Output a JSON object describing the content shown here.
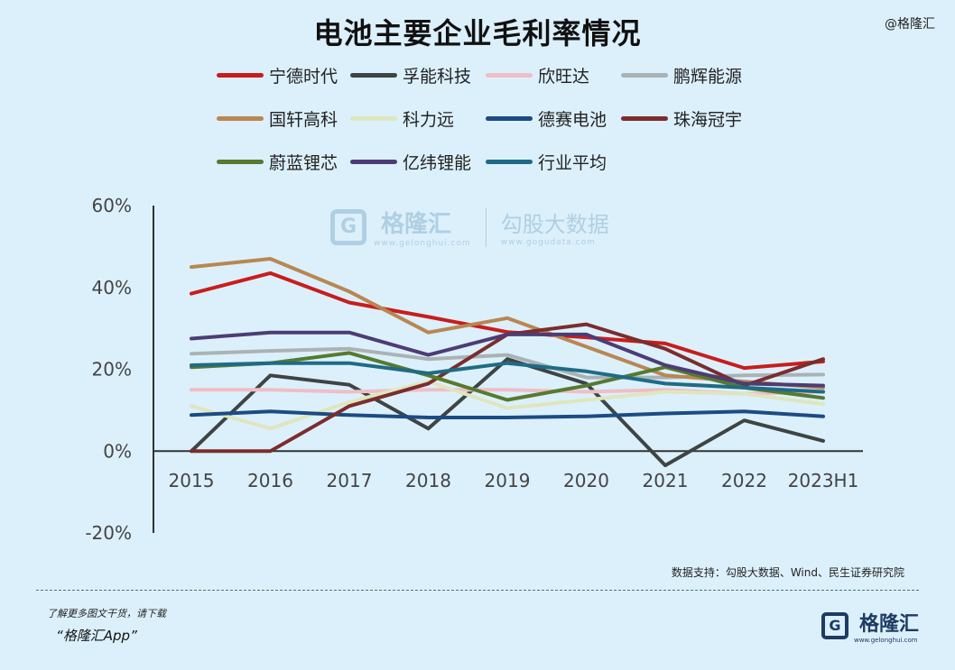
{
  "title": "电池主要企业毛利率情况",
  "top_watermark": "@格隆汇",
  "watermark": {
    "logo_letter": "G",
    "brand1": "格隆汇",
    "brand1_url": "www.gelonghui.com",
    "brand2": "勾股大数据",
    "brand2_url": "www.gogudata.com"
  },
  "source": "数据支持：勾股大数据、Wind、民生证券研究院",
  "footer": {
    "line1": "了解更多图文干货，请下载",
    "line2": "“格隆汇App”",
    "logo_letter": "G",
    "logo_text": "格隆汇",
    "logo_url": "www.gelonghui.com"
  },
  "chart_data": {
    "type": "line",
    "title": "电池主要企业毛利率情况",
    "categories": [
      "2015",
      "2016",
      "2017",
      "2018",
      "2019",
      "2020",
      "2021",
      "2022",
      "2023H1"
    ],
    "y_ticks": [
      "60%",
      "40%",
      "20%",
      "0%",
      "-20%"
    ],
    "ylim": [
      -20,
      60
    ],
    "grid": false,
    "legend_position": "top",
    "series": [
      {
        "name": "宁德时代",
        "color": "#c81d1d",
        "values": [
          38.5,
          43.5,
          36.3,
          32.8,
          29.1,
          27.8,
          26.3,
          20.3,
          21.9
        ]
      },
      {
        "name": "孚能科技",
        "color": "#3e4444",
        "values": [
          0,
          18.5,
          16.2,
          5.5,
          22.5,
          16.5,
          -3.5,
          7.5,
          2.5
        ]
      },
      {
        "name": "欣旺达",
        "color": "#efbec6",
        "values": [
          15.0,
          15.0,
          14.5,
          15.0,
          15.0,
          14.5,
          15.0,
          14.0,
          14.5
        ]
      },
      {
        "name": "鹏辉能源",
        "color": "#a9b3b5",
        "values": [
          23.8,
          24.5,
          25.0,
          22.5,
          23.5,
          18.0,
          18.0,
          18.5,
          18.7
        ]
      },
      {
        "name": "国轩高科",
        "color": "#b98652",
        "values": [
          45.0,
          47.0,
          39.0,
          29.0,
          32.5,
          25.5,
          18.5,
          17.0,
          15.5
        ]
      },
      {
        "name": "科力远",
        "color": "#dfe6bf",
        "values": [
          11.0,
          5.5,
          12.0,
          17.0,
          10.5,
          12.5,
          14.5,
          14.0,
          11.5
        ]
      },
      {
        "name": "德赛电池",
        "color": "#1c4b85",
        "values": [
          8.8,
          9.7,
          8.8,
          8.2,
          8.2,
          8.5,
          9.2,
          9.7,
          8.5
        ]
      },
      {
        "name": "珠海冠宇",
        "color": "#7b2d2d",
        "values": [
          0,
          0,
          11.0,
          16.5,
          28.5,
          31.0,
          25.0,
          16.0,
          22.5
        ]
      },
      {
        "name": "蔚蓝锂芯",
        "color": "#567a2e",
        "values": [
          20.5,
          21.5,
          24.0,
          18.5,
          12.5,
          16.0,
          20.5,
          15.5,
          13.0
        ]
      },
      {
        "name": "亿纬锂能",
        "color": "#4d3c75",
        "values": [
          27.5,
          29.0,
          29.0,
          23.5,
          28.5,
          28.5,
          21.0,
          16.5,
          16.0
        ]
      },
      {
        "name": "行业平均",
        "color": "#1f6b86",
        "values": [
          21.0,
          21.5,
          21.5,
          19.0,
          21.5,
          19.5,
          16.5,
          15.5,
          14.5
        ]
      }
    ]
  }
}
